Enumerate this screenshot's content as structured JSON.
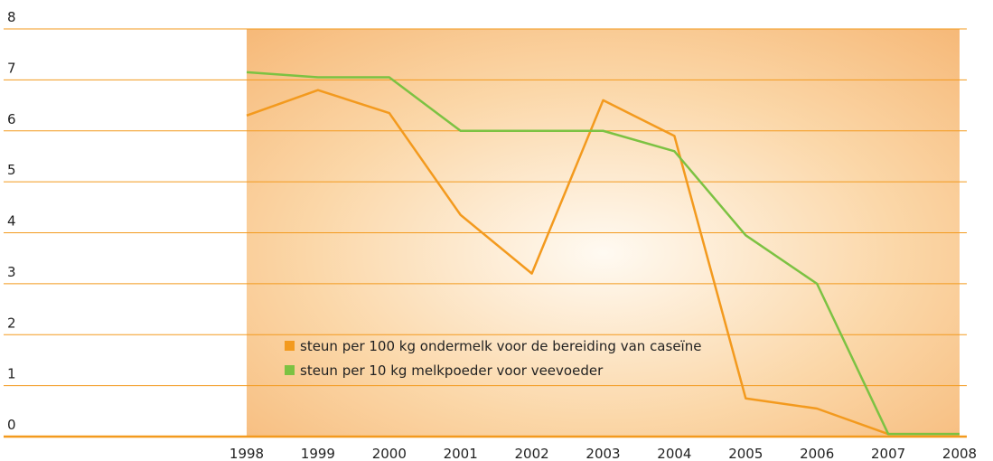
{
  "chart_data": {
    "type": "line",
    "x": [
      1998,
      1999,
      2000,
      2001,
      2002,
      2003,
      2004,
      2005,
      2006,
      2007,
      2008
    ],
    "series": [
      {
        "name": "steun per 100 kg ondermelk voor de bereiding van caseïne",
        "color": "#f39a1e",
        "values": [
          6.3,
          6.8,
          6.35,
          4.35,
          3.2,
          6.6,
          5.9,
          0.75,
          0.55,
          0.05,
          0.05
        ]
      },
      {
        "name": "steun per 10 kg melkpoeder voor veevoeder",
        "color": "#7cc242",
        "values": [
          7.15,
          7.05,
          7.05,
          6.0,
          6.0,
          6.0,
          5.6,
          3.95,
          3.0,
          0.05,
          0.05
        ]
      }
    ],
    "xlim": [
      1998,
      2008
    ],
    "xticks": [
      1998,
      1999,
      2000,
      2001,
      2002,
      2003,
      2004,
      2005,
      2006,
      2007,
      2008
    ],
    "ylim": [
      0,
      8
    ],
    "yticks": [
      0,
      1,
      2,
      3,
      4,
      5,
      6,
      7,
      8
    ],
    "grid": true
  }
}
